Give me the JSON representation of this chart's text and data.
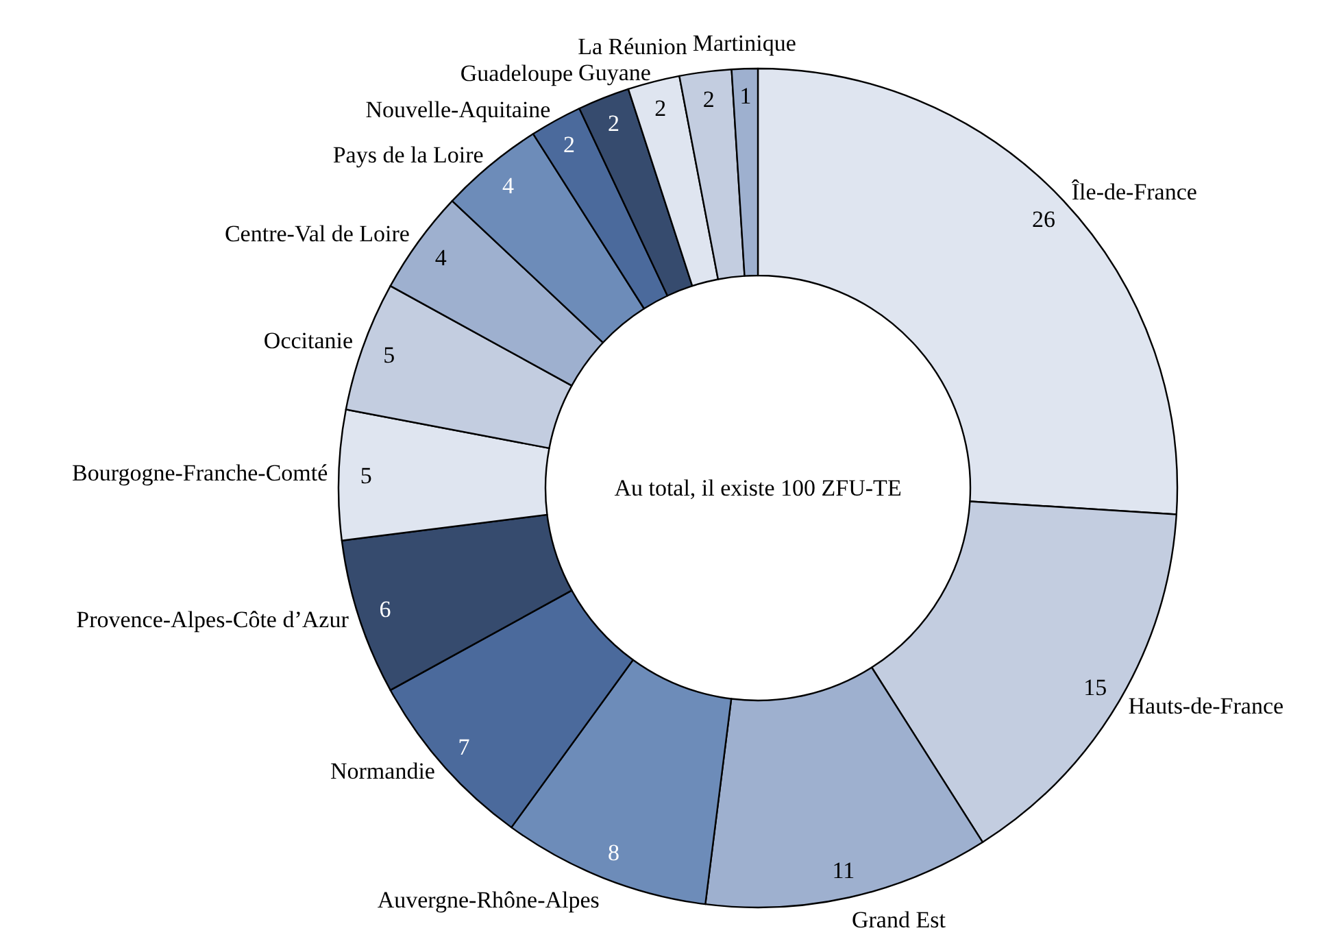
{
  "chart_data": {
    "type": "donut",
    "categories": [
      "Île-de-France",
      "Hauts-de-France",
      "Grand Est",
      "Auvergne-Rhône-Alpes",
      "Normandie",
      "Provence-Alpes-Côte d’Azur",
      "Bourgogne-Franche-Comté",
      "Occitanie",
      "Centre-Val de Loire",
      "Pays de la Loire",
      "Nouvelle-Aquitaine",
      "Guadeloupe",
      "Guyane",
      "La Réunion",
      "Martinique"
    ],
    "values": [
      26,
      15,
      11,
      8,
      7,
      6,
      5,
      5,
      4,
      4,
      2,
      2,
      2,
      2,
      1
    ],
    "colors": [
      "#dfe5f0",
      "#c3cde0",
      "#9eb0cf",
      "#6d8cb9",
      "#4b6a9c",
      "#364b6e",
      "#dfe5f0",
      "#c3cde0",
      "#9eb0cf",
      "#6d8cb9",
      "#4b6a9c",
      "#364b6e",
      "#dfe5f0",
      "#c3cde0",
      "#9eb0cf"
    ],
    "data_labels": true,
    "legend": false,
    "annotations": [
      "Au total, il existe 100 ZFU-TE"
    ]
  }
}
